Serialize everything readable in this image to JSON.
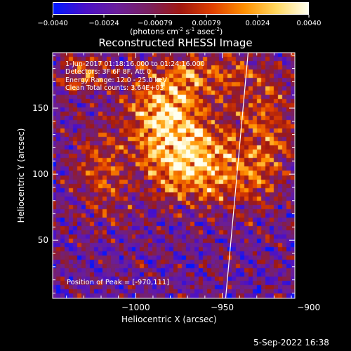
{
  "colorbar": {
    "ticks": [
      "-0.0040",
      "-0.0024",
      "-0.00079",
      "0.00079",
      "0.0024",
      "0.0040"
    ],
    "unit_parts": [
      "(photons cm",
      "-2",
      " s",
      "-1",
      " asec",
      "-2",
      ")"
    ],
    "colors": [
      "#0018ff",
      "#4a10c8",
      "#6a1e9a",
      "#7a2060",
      "#a01810",
      "#e04000",
      "#ff9000",
      "#ffd860",
      "#fffff0"
    ]
  },
  "chart_data": {
    "type": "heatmap",
    "title": "Reconstructed RHESSI Image",
    "xlabel": "Heliocentric X (arcsec)",
    "ylabel": "Heliocentric Y (arcsec)",
    "xlim": [
      -1048,
      -908
    ],
    "ylim": [
      6,
      192
    ],
    "xticks": [
      -1000,
      -950,
      -900
    ],
    "xtick_labels": [
      "−1000",
      "−950",
      "−900"
    ],
    "yticks": [
      50,
      100,
      150
    ],
    "ytick_labels": [
      "50",
      "100",
      "150"
    ],
    "annotations": [
      "1-Jun-2017 01:18:16.000 to 01:24:16.000",
      "Detectors: 3F 6F 8F, Att 0",
      "Energy Range: 12.0 - 25.0 keV",
      "Clean     Total counts: 3.64E+03"
    ],
    "peak_label": "Position of Peak = [-970,111]",
    "peak": [
      -970,
      111
    ],
    "limb": [
      [
        -948,
        6
      ],
      [
        -935,
        192
      ]
    ],
    "sources": [
      {
        "x": -970,
        "y": 112,
        "sx": 18,
        "sy": 22,
        "amp": 1.0
      },
      {
        "x": -985,
        "y": 150,
        "sx": 14,
        "sy": 20,
        "amp": 0.75
      },
      {
        "x": -960,
        "y": 175,
        "sx": 18,
        "sy": 12,
        "amp": 0.55
      },
      {
        "x": -1030,
        "y": 175,
        "sx": 10,
        "sy": 10,
        "amp": 0.5
      },
      {
        "x": -1020,
        "y": 100,
        "sx": 12,
        "sy": 25,
        "amp": 0.45
      },
      {
        "x": -925,
        "y": 135,
        "sx": 12,
        "sy": 30,
        "amp": 0.5
      },
      {
        "x": -940,
        "y": 95,
        "sx": 15,
        "sy": 15,
        "amp": 0.35
      }
    ]
  },
  "footer": {
    "date": "5-Sep-2022 16:38"
  }
}
